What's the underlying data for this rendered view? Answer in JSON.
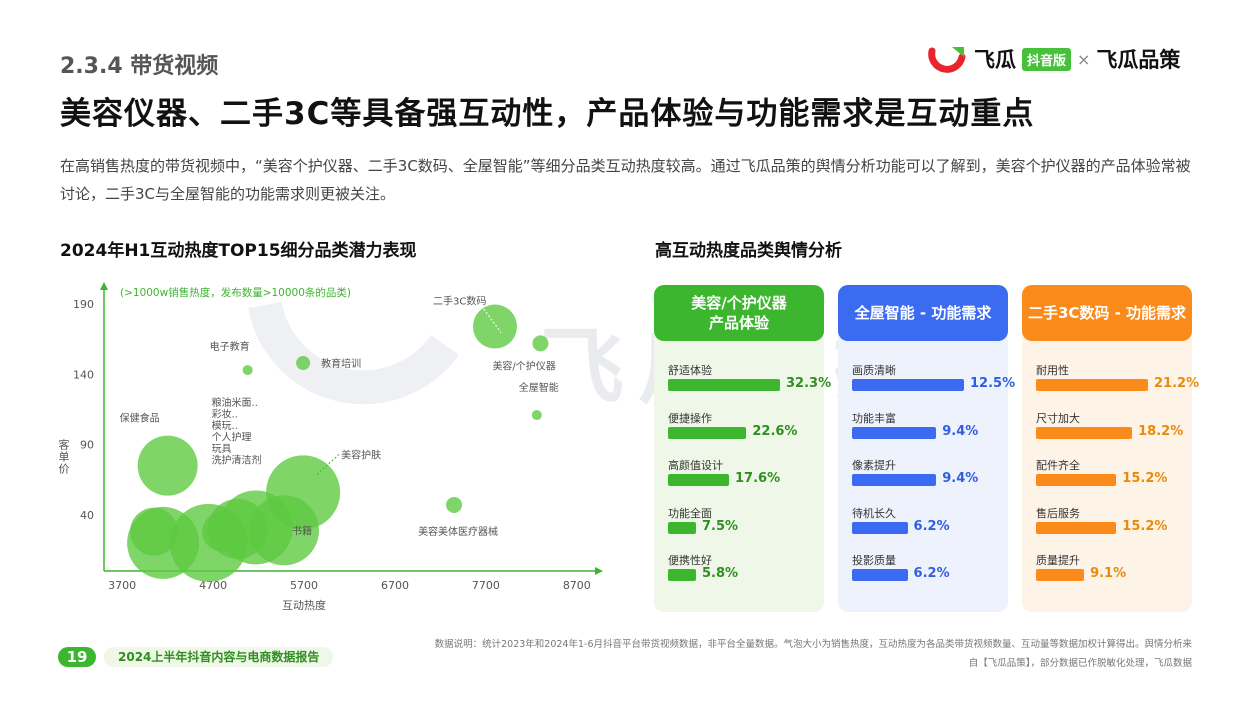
{
  "header": {
    "section": "2.3.4 带货视频",
    "headline": "美容仪器、二手3C等具备强互动性，产品体验与功能需求是互动重点",
    "intro": "在高销售热度的带货视频中，“美容个护仪器、二手3C数码、全屋智能”等细分品类互动热度较高。通过飞瓜品策的舆情分析功能可以了解到，美容个护仪器的产品体验常被讨论，二手3C与全屋智能的功能需求则更被关注。",
    "logo_left": "飞瓜",
    "logo_badge": "抖音版",
    "logo_x": "×",
    "logo_right": "飞瓜品策"
  },
  "watermark": "飞瓜数据",
  "chart_data": {
    "type": "scatter",
    "title": "2024年H1互动热度TOP15细分品类潜力表现",
    "subtitle": "(>1000w销售热度，发布数量>10000条的品类)",
    "xlabel": "互动热度",
    "ylabel": "客单价",
    "xlim": [
      3500,
      8900
    ],
    "ylim": [
      0,
      200
    ],
    "xticks": [
      3700,
      4700,
      5700,
      6700,
      7700,
      8700
    ],
    "yticks": [
      40,
      90,
      140,
      190
    ],
    "bubble_size_meaning": "销售热度",
    "points": [
      {
        "label": "二手3C数码",
        "x": 7800,
        "y": 174,
        "size": 22
      },
      {
        "label": "美容/个护仪器",
        "x": 8300,
        "y": 162,
        "size": 8
      },
      {
        "label": "电子教育",
        "x": 5080,
        "y": 143,
        "size": 5
      },
      {
        "label": "教育培训",
        "x": 5690,
        "y": 148,
        "size": 7
      },
      {
        "label": "全屋智能",
        "x": 8260,
        "y": 111,
        "size": 5
      },
      {
        "label": "保健食品",
        "x": 4200,
        "y": 75,
        "size": 30
      },
      {
        "label": "美容护肤",
        "x": 5690,
        "y": 56,
        "size": 37
      },
      {
        "label": "美容美体医疗器械",
        "x": 7350,
        "y": 47,
        "size": 8
      },
      {
        "label": "",
        "x": 4050,
        "y": 28,
        "size": 24
      },
      {
        "label": "",
        "x": 4150,
        "y": 20,
        "size": 36
      },
      {
        "label": "",
        "x": 4650,
        "y": 20,
        "size": 39
      },
      {
        "label": "",
        "x": 4970,
        "y": 30,
        "size": 30
      },
      {
        "label": "",
        "x": 5170,
        "y": 31,
        "size": 37
      },
      {
        "label": "书籍",
        "x": 5480,
        "y": 29,
        "size": 35
      },
      {
        "label": "",
        "x": 4800,
        "y": 28,
        "size": 20
      }
    ],
    "cluster_labels": [
      "粮油米面..",
      "彩妆..",
      "模玩..",
      "个人护理",
      "玩具",
      "洗护清洁剂"
    ]
  },
  "sentiment": {
    "title": "高互动热度品类舆情分析",
    "cards": [
      {
        "header": "美容/个护仪器\n产品体验",
        "color": "#3cb52f",
        "bg": "#eef7e8",
        "pct_color": "#2f8f1f",
        "items": [
          {
            "label": "舒适体验",
            "value": "32.3%",
            "pct": 32.3
          },
          {
            "label": "便捷操作",
            "value": "22.6%",
            "pct": 22.6
          },
          {
            "label": "高颜值设计",
            "value": "17.6%",
            "pct": 17.6
          },
          {
            "label": "功能全面",
            "value": "7.5%",
            "pct": 7.5
          },
          {
            "label": "便携性好",
            "value": "5.8%",
            "pct": 5.8
          }
        ]
      },
      {
        "header": "全屋智能 - 功能需求",
        "color": "#3a6bf0",
        "bg": "#edf2fd",
        "pct_color": "#2f5ee0",
        "items": [
          {
            "label": "画质清晰",
            "value": "12.5%",
            "pct": 12.5
          },
          {
            "label": "功能丰富",
            "value": "9.4%",
            "pct": 9.4
          },
          {
            "label": "像素提升",
            "value": "9.4%",
            "pct": 9.4
          },
          {
            "label": "待机长久",
            "value": "6.2%",
            "pct": 6.2
          },
          {
            "label": "投影质量",
            "value": "6.2%",
            "pct": 6.2
          }
        ]
      },
      {
        "header": "二手3C数码 - 功能需求",
        "color": "#fa8a1a",
        "bg": "#fdf3e6",
        "pct_color": "#e88a0c",
        "items": [
          {
            "label": "耐用性",
            "value": "21.2%",
            "pct": 21.2
          },
          {
            "label": "尺寸加大",
            "value": "18.2%",
            "pct": 18.2
          },
          {
            "label": "配件齐全",
            "value": "15.2%",
            "pct": 15.2
          },
          {
            "label": "售后服务",
            "value": "15.2%",
            "pct": 15.2
          },
          {
            "label": "质量提升",
            "value": "9.1%",
            "pct": 9.1
          }
        ]
      }
    ]
  },
  "footer": {
    "page_number": "19",
    "report_title": "2024上半年抖音内容与电商数据报告",
    "note_line1": "数据说明：统计2023年和2024年1-6月抖音平台带货视频数据，非平台全量数据。气泡大小为销售热度，互动热度为各品类带货视频数量、互动量等数据加权计算得出。舆情分析来",
    "note_line2": "自【飞瓜品策】，部分数据已作脱敏化处理，飞瓜数据"
  }
}
